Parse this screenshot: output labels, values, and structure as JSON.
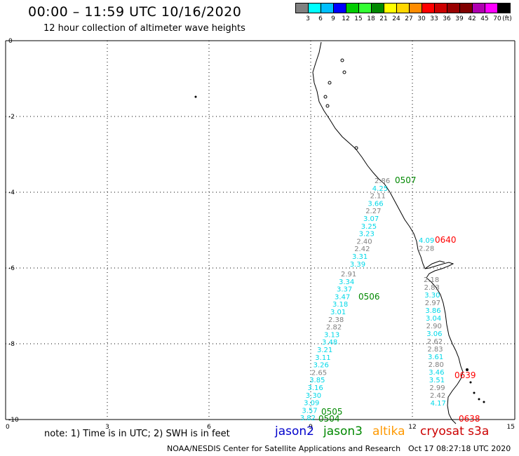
{
  "header": {
    "title": "00:00 – 11:59 UTC 10/16/2020",
    "subtitle": "12 hour collection of altimeter wave heights"
  },
  "legend": {
    "unit": "(ft)",
    "bins": [
      {
        "label": "3",
        "color": "#808080"
      },
      {
        "label": "6",
        "color": "#00ffff"
      },
      {
        "label": "9",
        "color": "#00bfff"
      },
      {
        "label": "12",
        "color": "#0000ff"
      },
      {
        "label": "15",
        "color": "#00cc00"
      },
      {
        "label": "18",
        "color": "#33ff33"
      },
      {
        "label": "21",
        "color": "#008800"
      },
      {
        "label": "24",
        "color": "#ffff00"
      },
      {
        "label": "27",
        "color": "#ffd700"
      },
      {
        "label": "30",
        "color": "#ff8c00"
      },
      {
        "label": "33",
        "color": "#ff0000"
      },
      {
        "label": "36",
        "color": "#cc0000"
      },
      {
        "label": "39",
        "color": "#990000"
      },
      {
        "label": "42",
        "color": "#800000"
      },
      {
        "label": "45",
        "color": "#b000b0"
      },
      {
        "label": "70",
        "color": "#ff00ff"
      },
      {
        "label": "",
        "color": "#000000"
      }
    ]
  },
  "axes": {
    "x_ticks": [
      "0",
      "3",
      "6",
      "9",
      "12",
      "15"
    ],
    "y_ticks": [
      "0",
      "-2",
      "-4",
      "-6",
      "-8",
      "-10"
    ]
  },
  "tracks": [
    {
      "satellite": "jason3",
      "pass_label": "0507",
      "label_color": "#008800",
      "points": [
        {
          "value": "2.86",
          "color": "#808080"
        },
        {
          "value": "4.25",
          "color": "#00d8e8"
        },
        {
          "value": "2.11",
          "color": "#808080"
        },
        {
          "value": "3.66",
          "color": "#00d8e8"
        },
        {
          "value": "2.27",
          "color": "#808080"
        },
        {
          "value": "3.07",
          "color": "#00d8e8"
        },
        {
          "value": "3.25",
          "color": "#00d8e8"
        },
        {
          "value": "3.23",
          "color": "#00d8e8"
        },
        {
          "value": "2.40",
          "color": "#808080"
        },
        {
          "value": "2.42",
          "color": "#808080"
        },
        {
          "value": "3.31",
          "color": "#00d8e8"
        },
        {
          "value": "3.39",
          "color": "#00d8e8"
        }
      ]
    },
    {
      "satellite": "jason3",
      "pass_label": "0506",
      "label_color": "#008800",
      "points": [
        {
          "value": "2.91",
          "color": "#808080"
        },
        {
          "value": "3.34",
          "color": "#00d8e8"
        },
        {
          "value": "3.37",
          "color": "#00d8e8"
        },
        {
          "value": "3.47",
          "color": "#00d8e8"
        },
        {
          "value": "3.18",
          "color": "#00d8e8"
        },
        {
          "value": "3.01",
          "color": "#00d8e8"
        },
        {
          "value": "2.38",
          "color": "#808080"
        },
        {
          "value": "2.82",
          "color": "#808080"
        },
        {
          "value": "3.13",
          "color": "#00d8e8"
        },
        {
          "value": "3.48",
          "color": "#00d8e8"
        }
      ]
    },
    {
      "satellite": "jason3",
      "pass_label": "0505 / 0504",
      "label_color": "#008800",
      "points": [
        {
          "value": "3.21",
          "color": "#00d8e8"
        },
        {
          "value": "3.11",
          "color": "#00d8e8"
        },
        {
          "value": "3.26",
          "color": "#00d8e8"
        },
        {
          "value": "2.65",
          "color": "#808080"
        },
        {
          "value": "3.85",
          "color": "#00d8e8"
        },
        {
          "value": "3.16",
          "color": "#00d8e8"
        },
        {
          "value": "3.30",
          "color": "#00d8e8"
        },
        {
          "value": "3.09",
          "color": "#00d8e8"
        },
        {
          "value": "3.57",
          "color": "#00d8e8"
        },
        {
          "value": "3.82",
          "color": "#00d8e8"
        }
      ]
    },
    {
      "satellite": "cryosat s3a",
      "pass_label": "0640",
      "label_color": "#ff0000",
      "points": [
        {
          "value": "4.09",
          "color": "#00d8e8"
        },
        {
          "value": "2.28",
          "color": "#808080"
        }
      ]
    },
    {
      "satellite": "cryosat s3a",
      "pass_label": "0639",
      "label_color": "#ff0000",
      "points": [
        {
          "value": "2.18",
          "color": "#808080"
        },
        {
          "value": "2.83",
          "color": "#808080"
        },
        {
          "value": "3.30",
          "color": "#00d8e8"
        },
        {
          "value": "2.97",
          "color": "#808080"
        },
        {
          "value": "3.86",
          "color": "#00d8e8"
        },
        {
          "value": "3.04",
          "color": "#00d8e8"
        },
        {
          "value": "2.90",
          "color": "#808080"
        },
        {
          "value": "3.06",
          "color": "#00d8e8"
        },
        {
          "value": "2.62",
          "color": "#808080"
        },
        {
          "value": "2.83",
          "color": "#808080"
        },
        {
          "value": "3.61",
          "color": "#00d8e8"
        },
        {
          "value": "2.80",
          "color": "#808080"
        },
        {
          "value": "3.46",
          "color": "#00d8e8"
        },
        {
          "value": "3.51",
          "color": "#00d8e8"
        },
        {
          "value": "2.99",
          "color": "#808080"
        },
        {
          "value": "2.42",
          "color": "#808080"
        },
        {
          "value": "4.17",
          "color": "#00d8e8"
        }
      ]
    },
    {
      "satellite": "cryosat s3a",
      "pass_label": "0638",
      "label_color": "#ff0000",
      "points": []
    }
  ],
  "pass_labels": {
    "p0505": "0505",
    "p0504": "0504"
  },
  "footer": {
    "note": "note: 1) Time is in UTC; 2) SWH is in feet",
    "satellites": [
      {
        "name": "jason2",
        "color": "#0000cc"
      },
      {
        "name": "jason3",
        "color": "#008800"
      },
      {
        "name": "altika",
        "color": "#ff9900"
      },
      {
        "name": "cryosat s3a",
        "color": "#cc0000"
      }
    ],
    "credit": "NOAA/NESDIS Center for Satellite Applications and Research",
    "generated": "Oct 17 08:27:18 UTC 2020"
  }
}
